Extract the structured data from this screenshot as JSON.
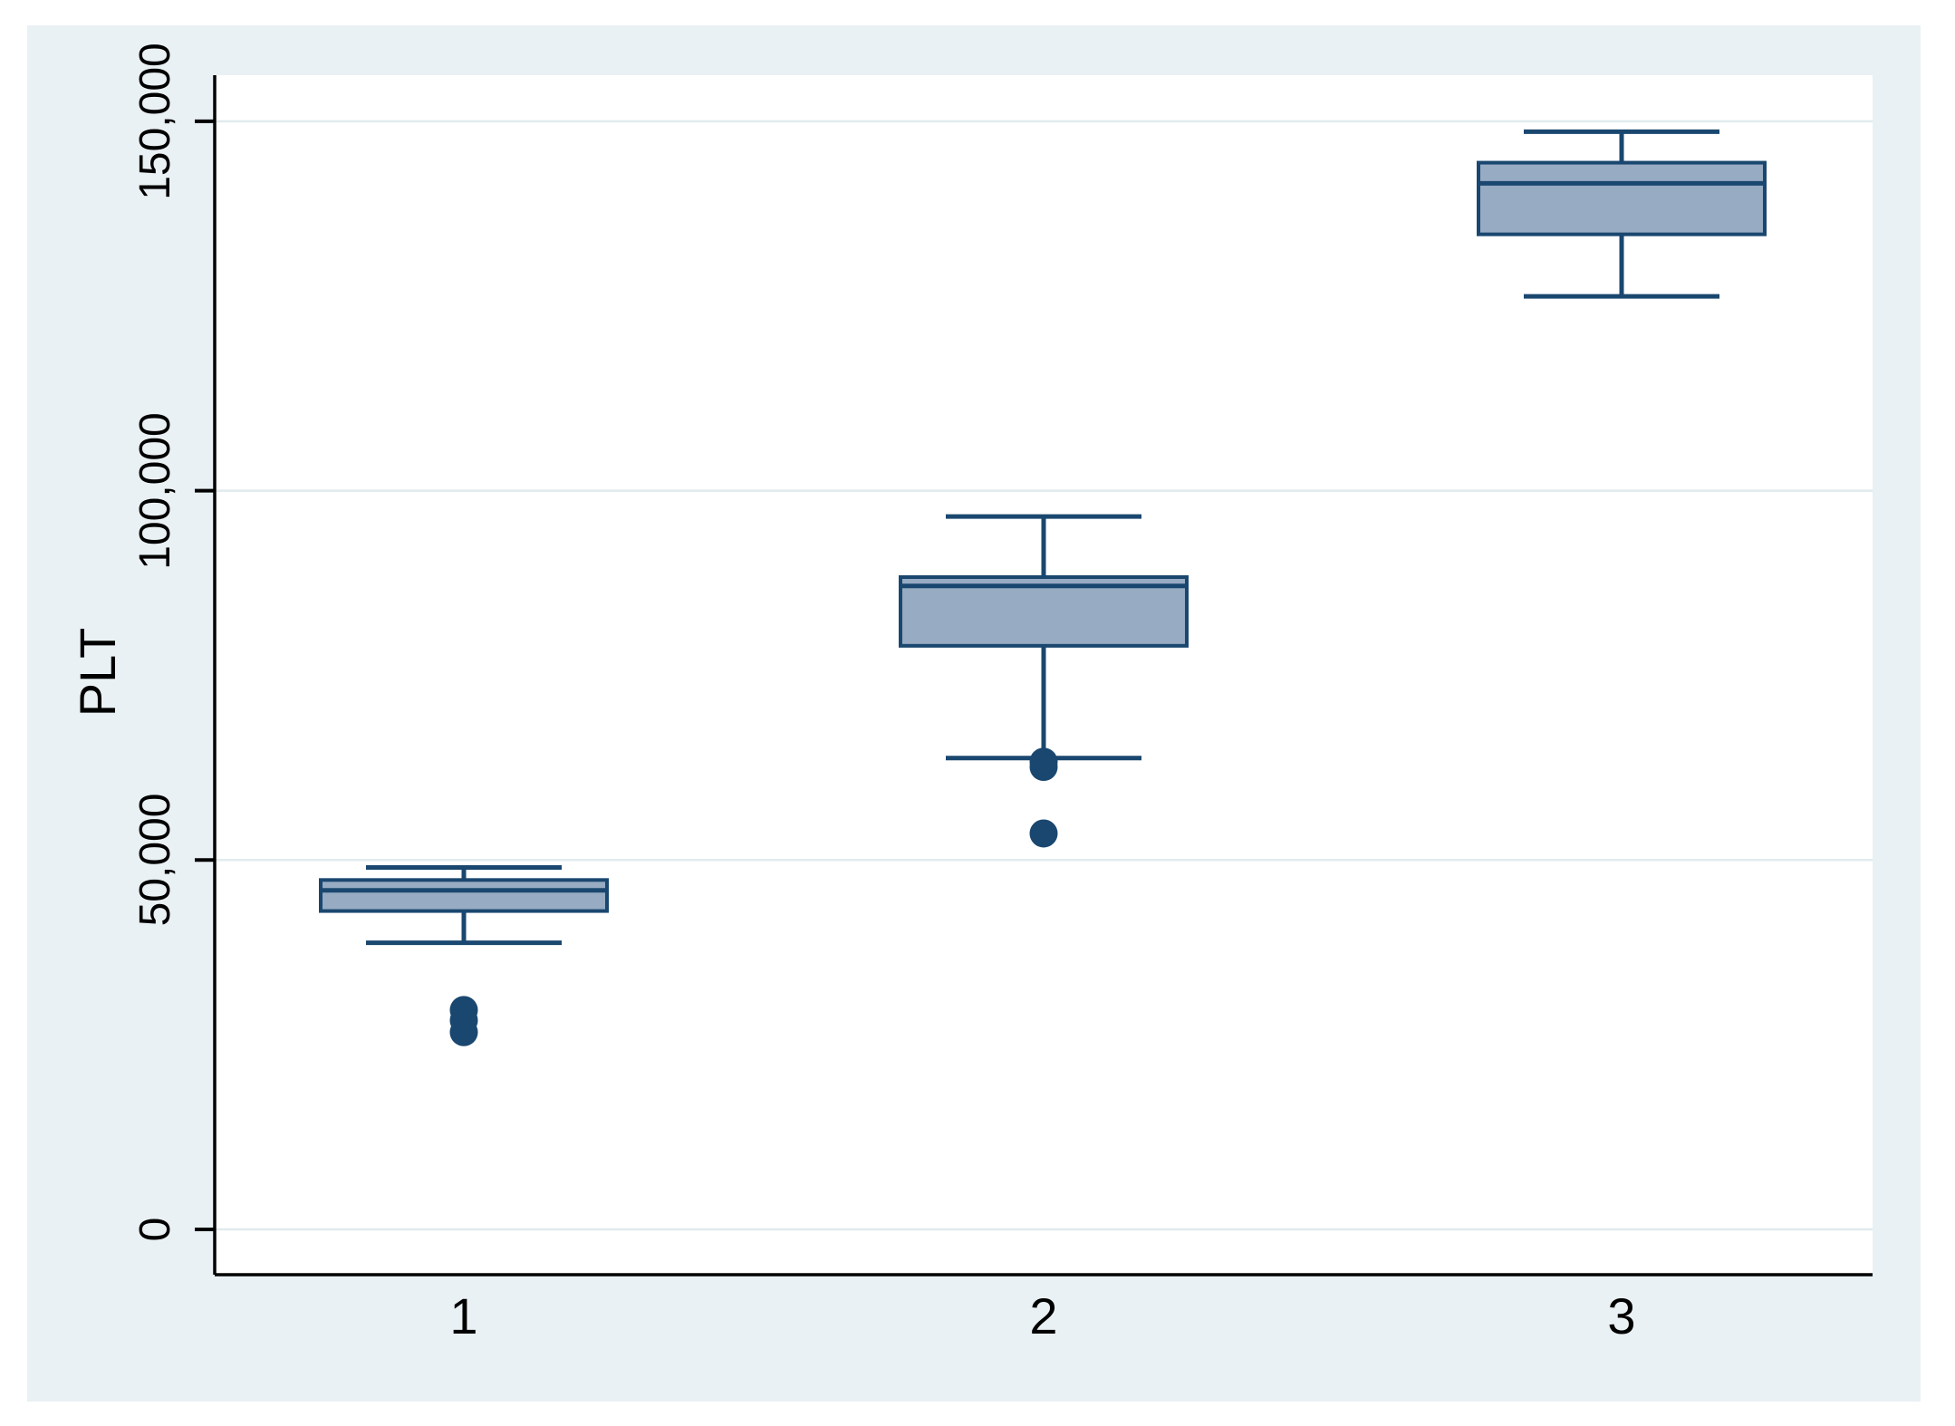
{
  "figure": {
    "background_color": "#eaf1f4",
    "plot_background": "#ffffff",
    "grid_color": "#e1ebee",
    "axis_color": "#000000",
    "text_color": "#000000"
  },
  "chart_data": {
    "type": "box",
    "title": "",
    "ylabel": "PLT",
    "xlabel": "",
    "categories": [
      "1",
      "2",
      "3"
    ],
    "y_axis": {
      "ticks": [
        0,
        50000,
        100000,
        150000
      ],
      "tick_labels": [
        "0",
        "50,000",
        "100,000",
        "150,000"
      ],
      "range": [
        -6100,
        156200
      ],
      "grid": true
    },
    "legend": "none",
    "series": [
      {
        "category": "1",
        "whisker_low": 38800,
        "q1": 43100,
        "median": 45900,
        "q3": 47300,
        "whisker_high": 49000,
        "outliers": [
          29700,
          28300,
          26700
        ]
      },
      {
        "category": "2",
        "whisker_low": 63800,
        "q1": 79000,
        "median": 87100,
        "q3": 88300,
        "whisker_high": 96500,
        "outliers": [
          63300,
          62600,
          53600
        ]
      },
      {
        "category": "3",
        "whisker_low": 126300,
        "q1": 134700,
        "median": 141600,
        "q3": 144400,
        "whisker_high": 148600,
        "outliers": []
      }
    ],
    "style": {
      "box_fill": "#97abc2",
      "box_border": "#1a476f",
      "median_color": "#1a476f",
      "whisker_color": "#1a476f",
      "outlier_color": "#1a476f"
    }
  }
}
